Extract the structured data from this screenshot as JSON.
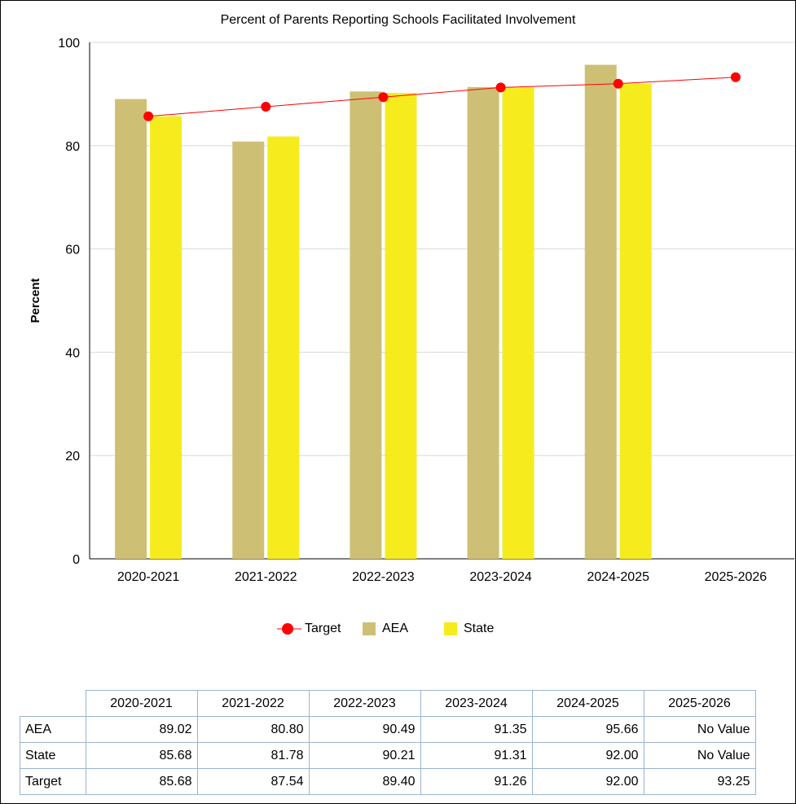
{
  "chart_data": {
    "type": "bar",
    "title": "Percent of Parents Reporting Schools Facilitated Involvement",
    "ylabel": "Percent",
    "xlabel": "",
    "ylim": [
      0,
      100
    ],
    "yticks": [
      0,
      20,
      40,
      60,
      80,
      100
    ],
    "grid": true,
    "legend_position": "bottom",
    "categories": [
      "2020-2021",
      "2021-2022",
      "2022-2023",
      "2023-2024",
      "2024-2025",
      "2025-2026"
    ],
    "series": [
      {
        "name": "AEA",
        "type": "bar",
        "color": "#cdc075",
        "values": [
          89.02,
          80.8,
          90.49,
          91.35,
          95.66,
          null
        ]
      },
      {
        "name": "State",
        "type": "bar",
        "color": "#f6ec1d",
        "values": [
          85.68,
          81.78,
          90.21,
          91.31,
          92.0,
          null
        ]
      },
      {
        "name": "Target",
        "type": "line",
        "color": "#ff0000",
        "values": [
          85.68,
          87.54,
          89.4,
          91.26,
          92.0,
          93.25
        ]
      }
    ],
    "legend": [
      {
        "name": "Target",
        "marker": "line-dot",
        "color": "#ff0000"
      },
      {
        "name": "AEA",
        "marker": "square",
        "color": "#cdc075"
      },
      {
        "name": "State",
        "marker": "square",
        "color": "#f6ec1d"
      }
    ]
  },
  "table": {
    "columns": [
      "2020-2021",
      "2021-2022",
      "2022-2023",
      "2023-2024",
      "2024-2025",
      "2025-2026"
    ],
    "rows": [
      {
        "label": "AEA",
        "cells": [
          "89.02",
          "80.80",
          "90.49",
          "91.35",
          "95.66",
          "No Value"
        ]
      },
      {
        "label": "State",
        "cells": [
          "85.68",
          "81.78",
          "90.21",
          "91.31",
          "92.00",
          "No Value"
        ]
      },
      {
        "label": "Target",
        "cells": [
          "85.68",
          "87.54",
          "89.40",
          "91.26",
          "92.00",
          "93.25"
        ]
      }
    ]
  }
}
